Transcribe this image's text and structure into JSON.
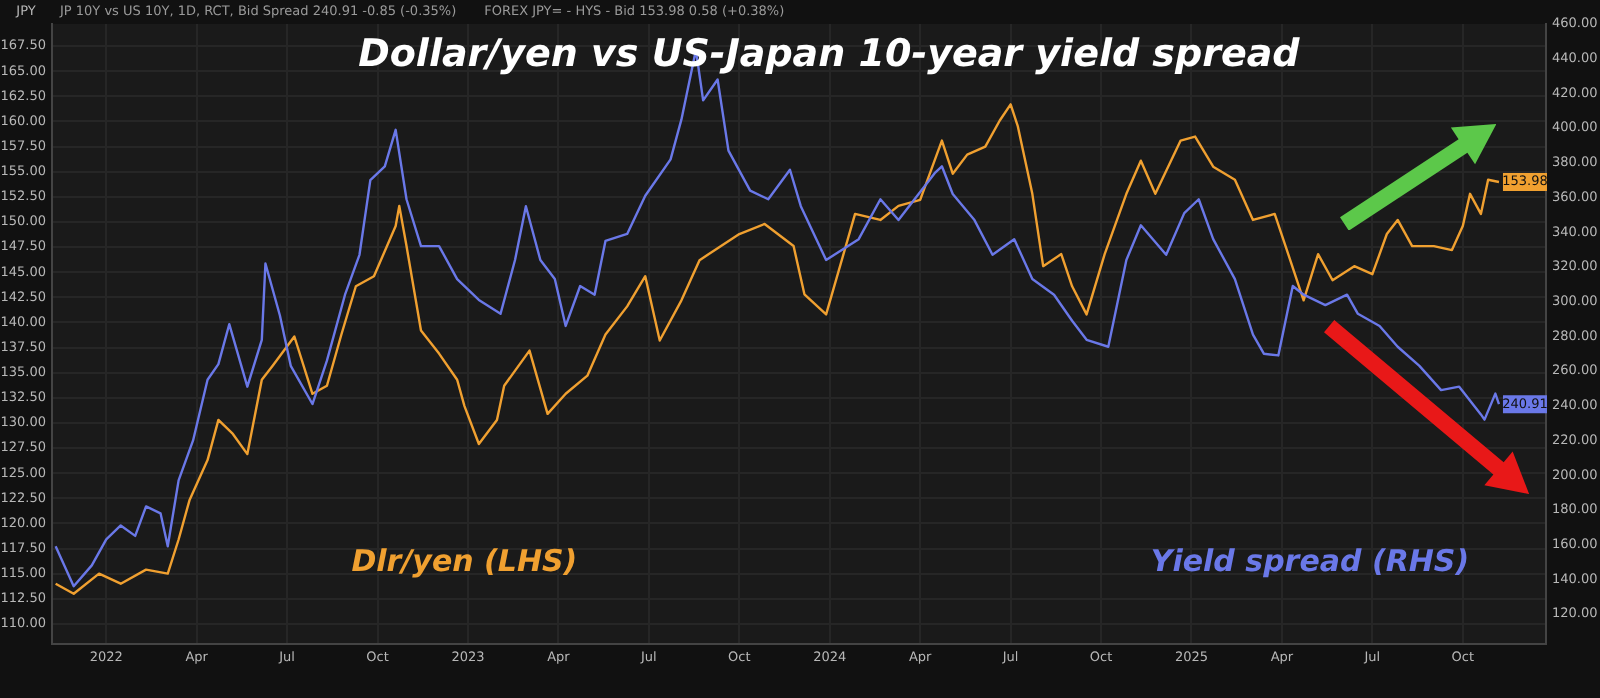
{
  "chart_data": {
    "type": "line",
    "title": "Dollar/yen vs US-Japan 10-year yield spread",
    "ylabel": "JPY",
    "annotations": [
      "JP 10Y vs US 10Y, 1D, RCT, Bid Spread 240.91 -0.85 (-0.35%)",
      "FOREX JPY= - HYS - Bid 153.98 0.58 (+0.38%)"
    ],
    "xlim": [
      2021.85,
      2025.98
    ],
    "xticks": [
      {
        "value": 2022,
        "label": "2022"
      },
      {
        "value": 2022.25,
        "label": "Apr"
      },
      {
        "value": 2022.5,
        "label": "Jul"
      },
      {
        "value": 2022.75,
        "label": "Oct"
      },
      {
        "value": 2023,
        "label": "2023"
      },
      {
        "value": 2023.25,
        "label": "Apr"
      },
      {
        "value": 2023.5,
        "label": "Jul"
      },
      {
        "value": 2023.75,
        "label": "Oct"
      },
      {
        "value": 2024,
        "label": "2024"
      },
      {
        "value": 2024.25,
        "label": "Apr"
      },
      {
        "value": 2024.5,
        "label": "Jul"
      },
      {
        "value": 2024.75,
        "label": "Oct"
      },
      {
        "value": 2025,
        "label": "2025"
      },
      {
        "value": 2025.25,
        "label": "Apr"
      },
      {
        "value": 2025.5,
        "label": "Jul"
      },
      {
        "value": 2025.75,
        "label": "Oct"
      }
    ],
    "ylim": [
      108,
      169.7
    ],
    "yticks": [
      {
        "value": 110,
        "label": "110.00"
      },
      {
        "value": 112.5,
        "label": "112.50"
      },
      {
        "value": 115,
        "label": "115.00"
      },
      {
        "value": 117.5,
        "label": "117.50"
      },
      {
        "value": 120,
        "label": "120.00"
      },
      {
        "value": 122.5,
        "label": "122.50"
      },
      {
        "value": 125,
        "label": "125.00"
      },
      {
        "value": 127.5,
        "label": "127.50"
      },
      {
        "value": 130,
        "label": "130.00"
      },
      {
        "value": 132.5,
        "label": "132.50"
      },
      {
        "value": 135,
        "label": "135.00"
      },
      {
        "value": 137.5,
        "label": "137.50"
      },
      {
        "value": 140,
        "label": "140.00"
      },
      {
        "value": 142.5,
        "label": "142.50"
      },
      {
        "value": 145,
        "label": "145.00"
      },
      {
        "value": 147.5,
        "label": "147.50"
      },
      {
        "value": 150,
        "label": "150.00"
      },
      {
        "value": 152.5,
        "label": "152.50"
      },
      {
        "value": 155,
        "label": "155.00"
      },
      {
        "value": 157.5,
        "label": "157.50"
      },
      {
        "value": 160,
        "label": "160.00"
      },
      {
        "value": 162.5,
        "label": "162.50"
      },
      {
        "value": 165,
        "label": "165.00"
      },
      {
        "value": 167.5,
        "label": "167.50"
      }
    ],
    "y2lim": [
      102.7,
      460
    ],
    "y2ticks": [
      {
        "value": 120,
        "label": "120.00"
      },
      {
        "value": 140,
        "label": "140.00"
      },
      {
        "value": 160,
        "label": "160.00"
      },
      {
        "value": 180,
        "label": "180.00"
      },
      {
        "value": 200,
        "label": "200.00"
      },
      {
        "value": 220,
        "label": "220.00"
      },
      {
        "value": 240,
        "label": "240.00"
      },
      {
        "value": 260,
        "label": "260.00"
      },
      {
        "value": 280,
        "label": "280.00"
      },
      {
        "value": 300,
        "label": "300.00"
      },
      {
        "value": 320,
        "label": "320.00"
      },
      {
        "value": 340,
        "label": "340.00"
      },
      {
        "value": 360,
        "label": "360.00"
      },
      {
        "value": 380,
        "label": "380.00"
      },
      {
        "value": 400,
        "label": "400.00"
      },
      {
        "value": 420,
        "label": "420.00"
      },
      {
        "value": 440,
        "label": "440.00"
      },
      {
        "value": 460,
        "label": "460.00"
      }
    ],
    "grid": true,
    "series": [
      {
        "name": "Dlr/yen (LHS)",
        "color": "#f0a030",
        "x": [
          2021.86,
          2021.91,
          2021.98,
          2022.04,
          2022.11,
          2022.17,
          2022.2,
          2022.23,
          2022.28,
          2022.31,
          2022.35,
          2022.39,
          2022.43,
          2022.46,
          2022.52,
          2022.57,
          2022.61,
          2022.65,
          2022.69,
          2022.74,
          2022.8,
          2022.81,
          2022.83,
          2022.87,
          2022.92,
          2022.97,
          2022.99,
          2023.03,
          2023.08,
          2023.1,
          2023.17,
          2023.22,
          2023.27,
          2023.33,
          2023.38,
          2023.44,
          2023.49,
          2023.53,
          2023.59,
          2023.64,
          2023.75,
          2023.82,
          2023.9,
          2023.93,
          2023.99,
          2024.07,
          2024.14,
          2024.19,
          2024.25,
          2024.31,
          2024.34,
          2024.38,
          2024.43,
          2024.47,
          2024.5,
          2024.52,
          2024.56,
          2024.59,
          2024.64,
          2024.67,
          2024.71,
          2024.76,
          2024.82,
          2024.86,
          2024.9,
          2024.97,
          2025.01,
          2025.06,
          2025.12,
          2025.17,
          2025.23,
          2025.26,
          2025.31,
          2025.35,
          2025.39,
          2025.45,
          2025.5,
          2025.54,
          2025.57,
          2025.61,
          2025.67,
          2025.72,
          2025.75,
          2025.77,
          2025.8,
          2025.82,
          2025.85
        ],
        "values": [
          114.0,
          113.0,
          115.0,
          114.0,
          115.4,
          115.0,
          118.4,
          122.3,
          126.3,
          130.3,
          128.9,
          126.9,
          134.3,
          135.7,
          138.6,
          132.9,
          133.7,
          138.8,
          143.6,
          144.6,
          149.6,
          151.6,
          147.6,
          139.2,
          136.9,
          134.3,
          131.7,
          127.9,
          130.3,
          133.7,
          137.2,
          130.9,
          132.9,
          134.7,
          138.8,
          141.6,
          144.6,
          138.2,
          142.2,
          146.2,
          148.8,
          149.8,
          147.6,
          142.8,
          140.8,
          150.8,
          150.2,
          151.6,
          152.2,
          158.1,
          154.8,
          156.7,
          157.5,
          160.1,
          161.7,
          159.5,
          152.8,
          145.6,
          146.8,
          143.6,
          140.8,
          146.8,
          152.8,
          156.1,
          152.8,
          158.1,
          158.5,
          155.5,
          154.2,
          150.2,
          150.8,
          147.6,
          142.2,
          146.8,
          144.2,
          145.6,
          144.8,
          148.8,
          150.2,
          147.6,
          147.6,
          147.2,
          149.6,
          152.8,
          150.8,
          154.2,
          153.98
        ],
        "value_labels": [
          null,
          null,
          null,
          null,
          null,
          null,
          null,
          null,
          null,
          null,
          null,
          null,
          null,
          null,
          null,
          null,
          null,
          null,
          null,
          null,
          null,
          null,
          null,
          null,
          null,
          null,
          null,
          null,
          null,
          null,
          null,
          null,
          null,
          null,
          null,
          null,
          null,
          null,
          null,
          null,
          null,
          null,
          null,
          null,
          null,
          null,
          null,
          null,
          null,
          null,
          null,
          null,
          null,
          null,
          null,
          null,
          null,
          null,
          null,
          null,
          null,
          null,
          null,
          null,
          null,
          null,
          null,
          null,
          null,
          null,
          null,
          null,
          null,
          null,
          null,
          null,
          null,
          null,
          null,
          null,
          null,
          null,
          null,
          null,
          null,
          null,
          "153.98"
        ]
      },
      {
        "name": "Yield spread (RHS)",
        "color": "#6a78e8",
        "axis": "y2",
        "x": [
          2021.86,
          2021.91,
          2021.96,
          2022.0,
          2022.04,
          2022.08,
          2022.11,
          2022.15,
          2022.17,
          2022.2,
          2022.24,
          2022.28,
          2022.31,
          2022.34,
          2022.39,
          2022.43,
          2022.44,
          2022.48,
          2022.51,
          2022.57,
          2022.61,
          2022.66,
          2022.7,
          2022.73,
          2022.77,
          2022.8,
          2022.83,
          2022.87,
          2022.92,
          2022.97,
          2023.03,
          2023.09,
          2023.13,
          2023.16,
          2023.2,
          2023.24,
          2023.27,
          2023.31,
          2023.35,
          2023.38,
          2023.44,
          2023.49,
          2023.56,
          2023.59,
          2023.63,
          2023.65,
          2023.69,
          2023.72,
          2023.78,
          2023.83,
          2023.89,
          2023.92,
          2023.99,
          2024.08,
          2024.14,
          2024.19,
          2024.29,
          2024.31,
          2024.34,
          2024.4,
          2024.45,
          2024.51,
          2024.56,
          2024.62,
          2024.67,
          2024.71,
          2024.77,
          2024.82,
          2024.86,
          2024.93,
          2024.98,
          2025.02,
          2025.06,
          2025.12,
          2025.17,
          2025.2,
          2025.24,
          2025.28,
          2025.31,
          2025.37,
          2025.43,
          2025.46,
          2025.52,
          2025.57,
          2025.63,
          2025.69,
          2025.74,
          2025.8,
          2025.81,
          2025.84,
          2025.85
        ],
        "values": [
          159,
          136,
          148,
          163,
          171,
          165,
          182,
          178,
          159,
          197,
          220,
          255,
          264,
          287,
          251,
          278,
          322,
          292,
          263,
          241,
          266,
          304,
          327,
          370,
          378,
          399,
          359,
          332,
          332,
          313,
          301,
          293,
          324,
          355,
          324,
          313,
          286,
          309,
          304,
          335,
          339,
          361,
          382,
          405,
          445,
          416,
          428,
          387,
          364,
          359,
          376,
          355,
          324,
          336,
          359,
          347,
          374,
          378,
          362,
          347,
          327,
          336,
          313,
          304,
          289,
          278,
          274,
          324,
          344,
          327,
          351,
          359,
          336,
          313,
          281,
          270,
          269,
          309,
          304,
          298,
          304,
          293,
          286,
          274,
          263,
          249,
          251,
          235,
          232,
          247,
          240.91
        ],
        "value_labels": [
          null,
          null,
          null,
          null,
          null,
          null,
          null,
          null,
          null,
          null,
          null,
          null,
          null,
          null,
          null,
          null,
          null,
          null,
          null,
          null,
          null,
          null,
          null,
          null,
          null,
          null,
          null,
          null,
          null,
          null,
          null,
          null,
          null,
          null,
          null,
          null,
          null,
          null,
          null,
          null,
          null,
          null,
          null,
          null,
          null,
          null,
          null,
          null,
          null,
          null,
          null,
          null,
          null,
          null,
          null,
          null,
          null,
          null,
          null,
          null,
          null,
          null,
          null,
          null,
          null,
          null,
          null,
          null,
          null,
          null,
          null,
          null,
          null,
          null,
          null,
          null,
          null,
          null,
          null,
          null,
          null,
          null,
          null,
          null,
          null,
          null,
          null,
          null,
          null,
          null,
          "240.91"
        ]
      }
    ]
  }
}
